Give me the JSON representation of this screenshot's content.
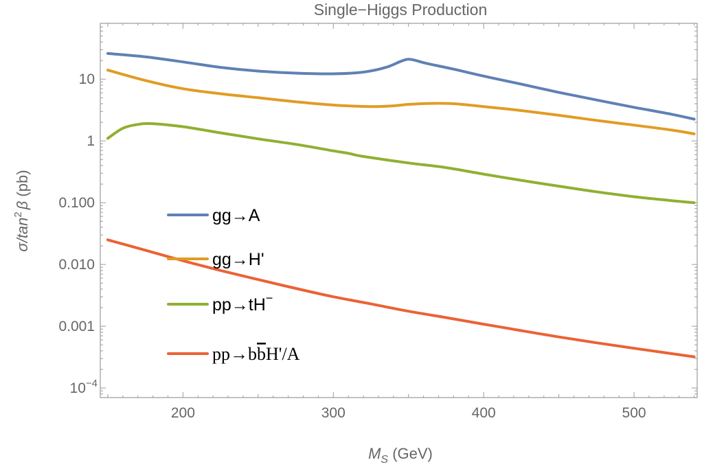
{
  "chart_data": {
    "type": "line",
    "title": "Single−Higgs Production",
    "xlabel": {
      "main": "M",
      "sub": "S",
      "unit": " (GeV)"
    },
    "ylabel": {
      "pre": "σ/tan",
      "sup": "2",
      "mid": "β",
      "unit": " (pb)"
    },
    "xlim": [
      145,
      542
    ],
    "ylim": [
      7e-05,
      80
    ],
    "yscale": "log",
    "x_ticks": [
      200,
      300,
      400,
      500
    ],
    "x_tick_labels": [
      "200",
      "300",
      "400",
      "500"
    ],
    "y_ticks": [
      {
        "value": 10,
        "label": "10",
        "sup": ""
      },
      {
        "value": 1,
        "label": "1",
        "sup": ""
      },
      {
        "value": 0.1,
        "label": "0.100",
        "sup": ""
      },
      {
        "value": 0.01,
        "label": "0.010",
        "sup": ""
      },
      {
        "value": 0.001,
        "label": "0.001",
        "sup": ""
      },
      {
        "value": 0.0001,
        "label": "10",
        "sup": "−4"
      }
    ],
    "grid": false,
    "legend_placement": "center-left",
    "series": [
      {
        "name": "gg→A",
        "color": "#5e81b5",
        "x": [
          150,
          175,
          200,
          225,
          250,
          275,
          300,
          320,
          335,
          345,
          350,
          355,
          362,
          380,
          400,
          425,
          450,
          475,
          500,
          525,
          540
        ],
        "y": [
          26,
          23,
          19,
          15.5,
          13.5,
          12.5,
          12.2,
          13.0,
          15.5,
          19.5,
          21.0,
          20.0,
          18.0,
          14.5,
          11.2,
          8.3,
          6.1,
          4.6,
          3.5,
          2.7,
          2.25
        ]
      },
      {
        "name": "gg→H'",
        "color": "#e19c24",
        "x": [
          150,
          175,
          200,
          225,
          250,
          275,
          300,
          325,
          340,
          350,
          365,
          380,
          400,
          425,
          450,
          475,
          500,
          525,
          540
        ],
        "y": [
          14,
          9.5,
          7.0,
          5.8,
          5.0,
          4.3,
          3.8,
          3.6,
          3.7,
          3.9,
          4.05,
          4.0,
          3.6,
          3.1,
          2.6,
          2.15,
          1.8,
          1.5,
          1.3
        ]
      },
      {
        "name": "pp→tH",
        "name_sup": "−",
        "color": "#8fb032",
        "x": [
          150,
          160,
          170,
          180,
          200,
          225,
          250,
          275,
          300,
          310,
          320,
          350,
          375,
          400,
          425,
          450,
          475,
          500,
          525,
          540
        ],
        "y": [
          1.1,
          1.6,
          1.85,
          1.9,
          1.7,
          1.35,
          1.08,
          0.88,
          0.69,
          0.63,
          0.56,
          0.44,
          0.37,
          0.29,
          0.23,
          0.185,
          0.15,
          0.125,
          0.108,
          0.1
        ]
      },
      {
        "name": "pp→b",
        "name_b": "b",
        "name_rest": "H'/A",
        "color": "#eb6235",
        "x": [
          150,
          175,
          200,
          225,
          250,
          275,
          300,
          325,
          350,
          375,
          400,
          425,
          450,
          475,
          500,
          525,
          540
        ],
        "y": [
          0.025,
          0.017,
          0.0115,
          0.008,
          0.0057,
          0.0041,
          0.003,
          0.0023,
          0.00175,
          0.00138,
          0.00108,
          0.00085,
          0.00067,
          0.00054,
          0.00044,
          0.00036,
          0.00032
        ]
      }
    ]
  }
}
